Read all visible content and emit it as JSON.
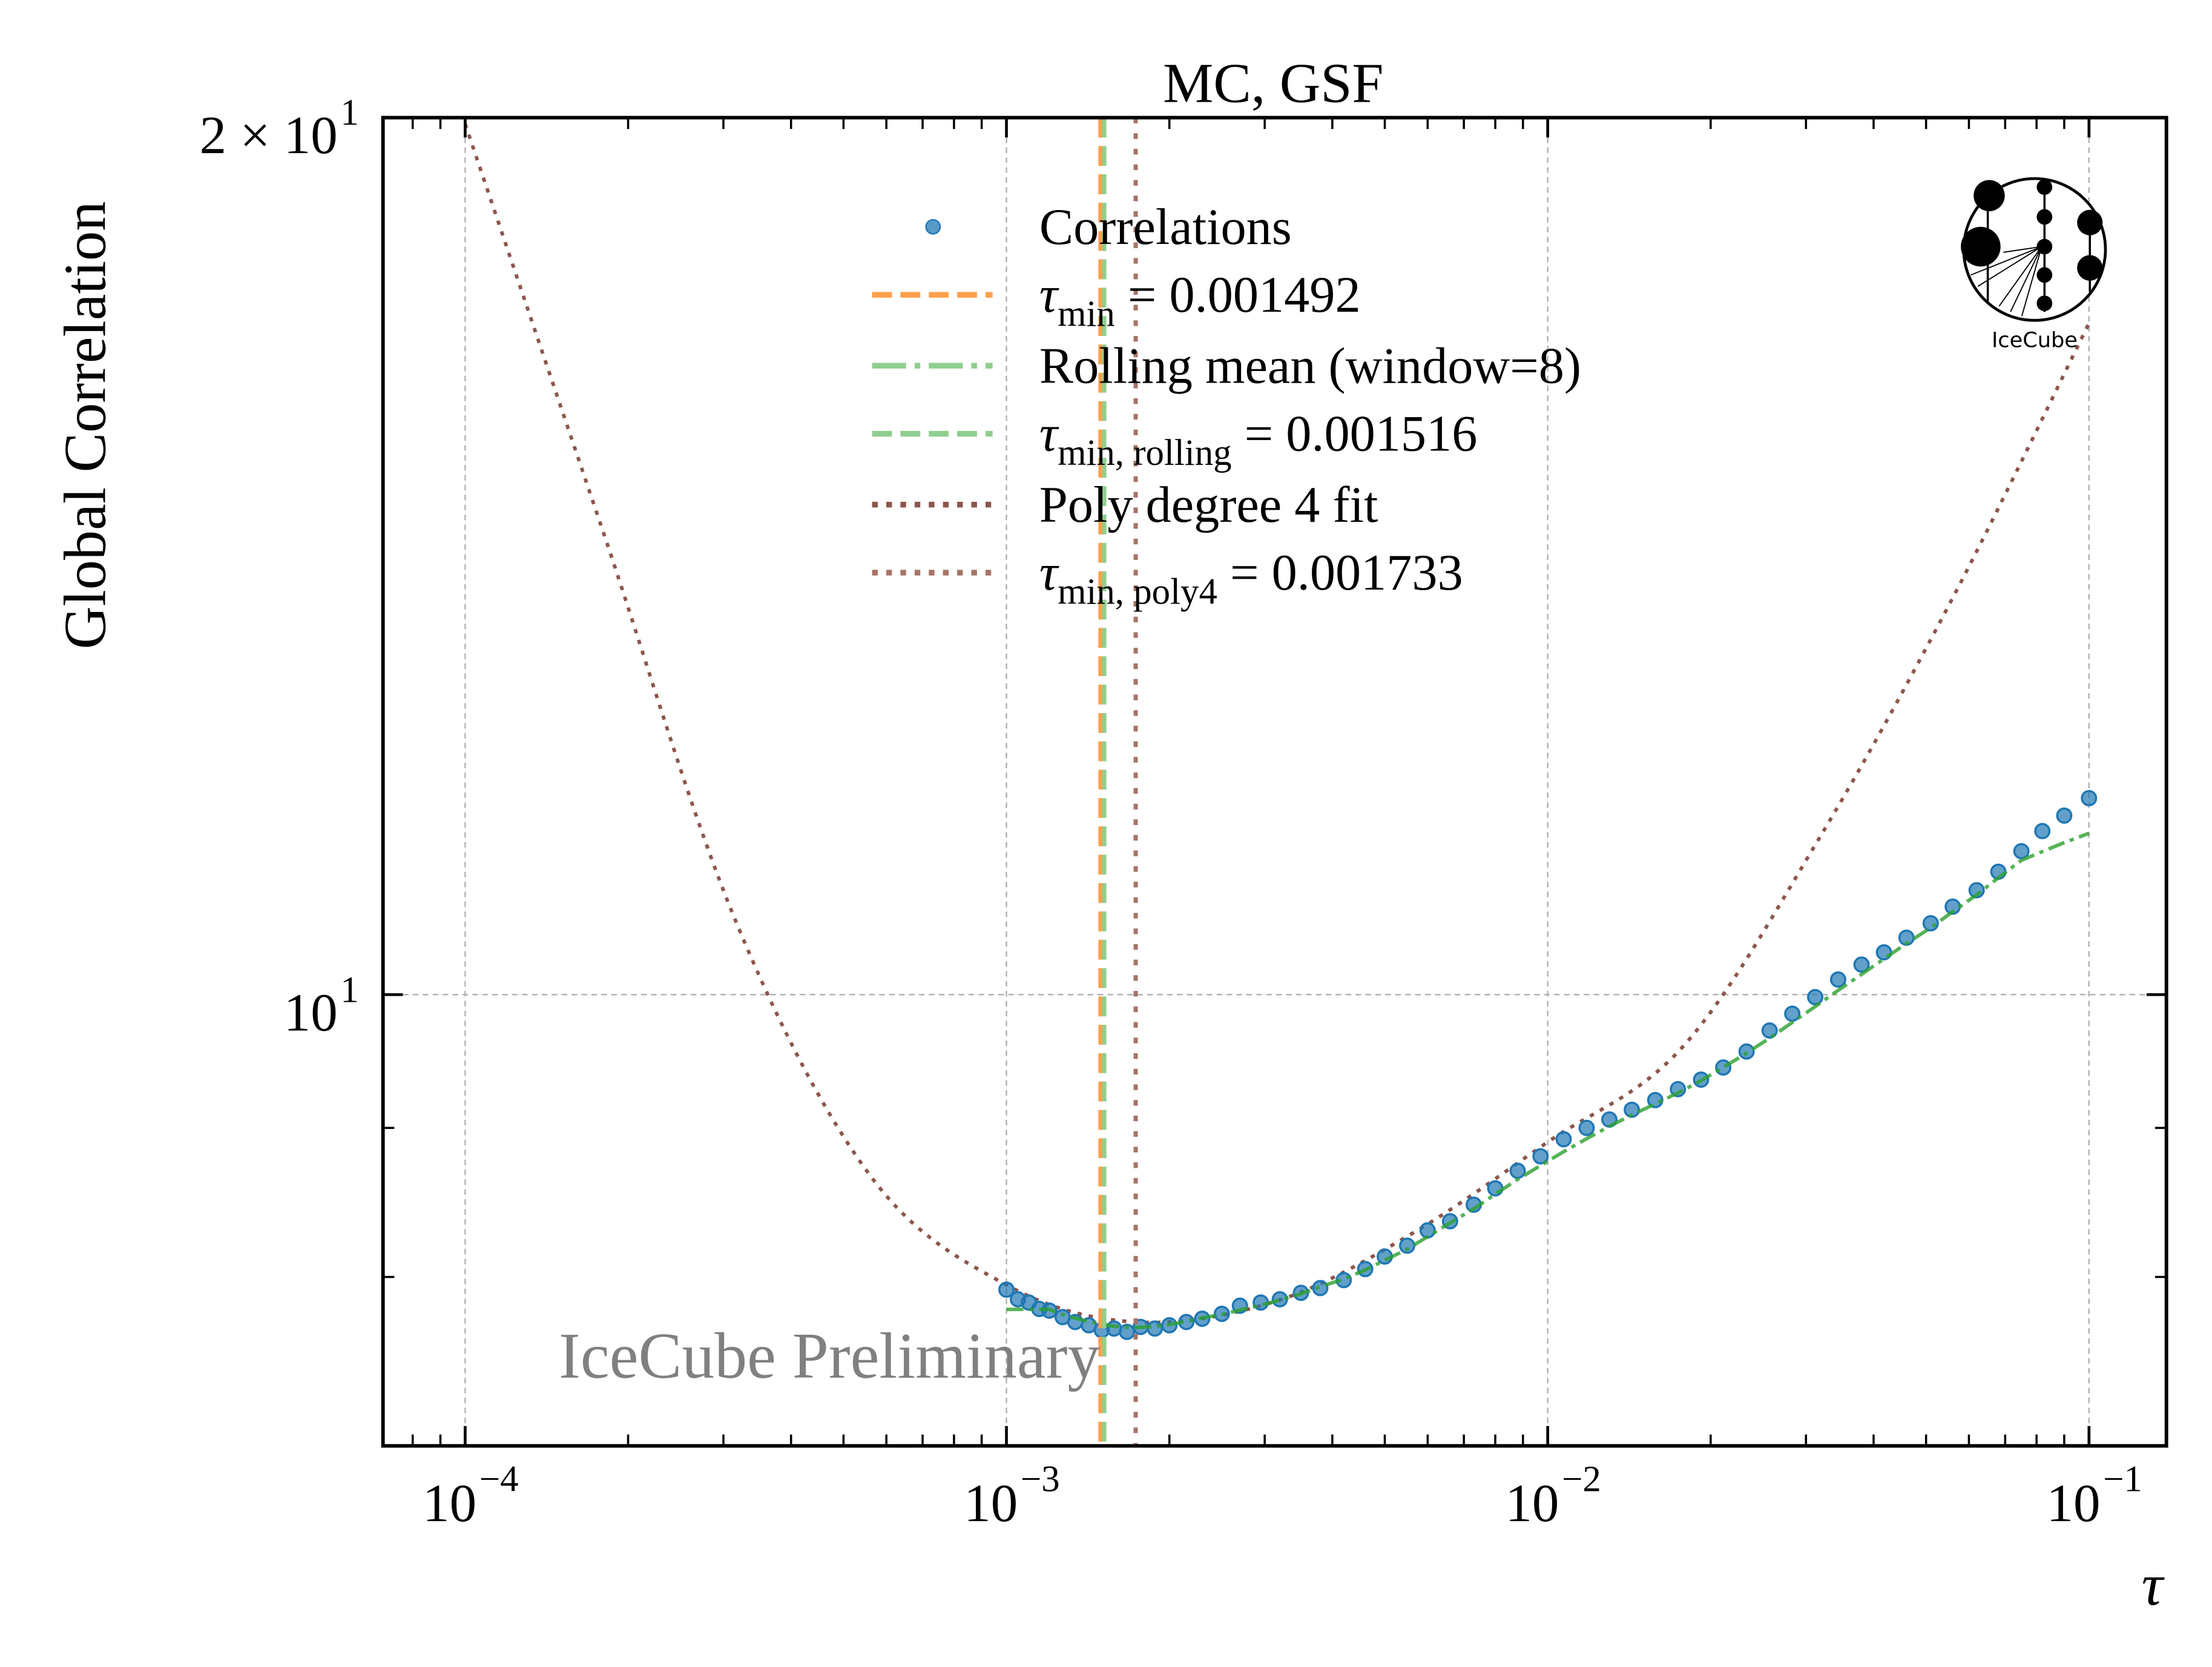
{
  "chart_data": {
    "type": "scatter",
    "title": "MC, GSF",
    "xlabel": "τ",
    "ylabel": "Global Correlation",
    "xscale": "log",
    "yscale": "log",
    "xlim": [
      7.05e-05,
      0.139
    ],
    "ylim": [
      7.0,
      20.0
    ],
    "grid": true,
    "legend_placement": "top-center",
    "x_tick_labels": [
      {
        "value": 0.0001,
        "base": "10",
        "exp": "−4"
      },
      {
        "value": 0.001,
        "base": "10",
        "exp": "−3"
      },
      {
        "value": 0.01,
        "base": "10",
        "exp": "−2"
      },
      {
        "value": 0.1,
        "base": "10",
        "exp": "−1"
      }
    ],
    "y_tick_labels": [
      {
        "value": 20,
        "base": "2 × 10",
        "exp": "1"
      },
      {
        "value": 10,
        "base": "10",
        "exp": "1"
      }
    ],
    "series": [
      {
        "name": "Correlations",
        "kind": "scatter",
        "color": "#1f77b4",
        "x": [
          0.001,
          0.00105,
          0.0011,
          0.00115,
          0.0012,
          0.00127,
          0.00134,
          0.00142,
          0.0015,
          0.00158,
          0.00167,
          0.00177,
          0.00188,
          0.002,
          0.00215,
          0.0023,
          0.0025,
          0.0027,
          0.00295,
          0.0032,
          0.0035,
          0.0038,
          0.0042,
          0.0046,
          0.005,
          0.0055,
          0.006,
          0.0066,
          0.0073,
          0.008,
          0.0088,
          0.0097,
          0.0107,
          0.0118,
          0.013,
          0.0143,
          0.0158,
          0.0174,
          0.0192,
          0.0211,
          0.0233,
          0.0257,
          0.0283,
          0.0312,
          0.0344,
          0.038,
          0.0418,
          0.046,
          0.051,
          0.056,
          0.062,
          0.068,
          0.075,
          0.082,
          0.09,
          0.1
        ],
        "y": [
          7.92,
          7.86,
          7.84,
          7.8,
          7.79,
          7.75,
          7.72,
          7.7,
          7.67,
          7.68,
          7.66,
          7.69,
          7.68,
          7.7,
          7.72,
          7.74,
          7.77,
          7.82,
          7.84,
          7.86,
          7.9,
          7.93,
          7.98,
          8.05,
          8.13,
          8.2,
          8.3,
          8.36,
          8.47,
          8.58,
          8.7,
          8.8,
          8.92,
          9.0,
          9.06,
          9.13,
          9.2,
          9.28,
          9.35,
          9.44,
          9.56,
          9.72,
          9.85,
          9.98,
          10.12,
          10.24,
          10.34,
          10.46,
          10.58,
          10.72,
          10.86,
          11.02,
          11.2,
          11.38,
          11.52,
          11.68
        ]
      },
      {
        "name": "τmin = 0.001492",
        "kind": "vline",
        "x": 0.001492,
        "color": "#ff7f0e",
        "style": "dashed"
      },
      {
        "name": "Rolling mean (window=8)",
        "kind": "line",
        "window": 8,
        "color": "#2ca02c",
        "style": "dashdot"
      },
      {
        "name": "τmin, rolling = 0.001516",
        "kind": "vline",
        "x": 0.001516,
        "color": "#2ca02c",
        "style": "dashed"
      },
      {
        "name": "Poly degree 4 fit",
        "kind": "line",
        "color": "#8c564b",
        "style": "dotted",
        "x": [
          0.0001,
          0.000178,
          0.000316,
          0.000562,
          0.001,
          0.001733,
          0.00316,
          0.00562,
          0.01,
          0.0178,
          0.0316,
          0.0562,
          0.1
        ],
        "y": [
          19.9,
          14.5,
          10.6,
          8.66,
          7.95,
          7.72,
          7.85,
          8.28,
          8.9,
          9.6,
          11.3,
          13.7,
          17.0
        ]
      },
      {
        "name": "τmin, poly4 = 0.001733",
        "kind": "vline",
        "x": 0.001733,
        "color": "#8c564b",
        "style": "dotted"
      }
    ],
    "annotations": [
      "IceCube Preliminary"
    ]
  },
  "legend": [
    {
      "label": "Correlations"
    },
    {
      "sym": "τ",
      "sub": "min",
      "rest": " = 0.001492"
    },
    {
      "label": "Rolling mean (window=8)"
    },
    {
      "sym": "τ",
      "sub": "min, rolling",
      "rest": " = 0.001516"
    },
    {
      "label": "Poly degree 4 fit"
    },
    {
      "sym": "τ",
      "sub": "min, poly4",
      "rest": " = 0.001733"
    }
  ],
  "logo": {
    "text": "IceCube"
  },
  "colors": {
    "scatter": "#1f77b4",
    "tau_min": "#ff9f4a",
    "rolling": "#8fce8f",
    "poly": "#8c564b",
    "poly_vline": "#a57467",
    "grid": "#b0b0b0"
  }
}
